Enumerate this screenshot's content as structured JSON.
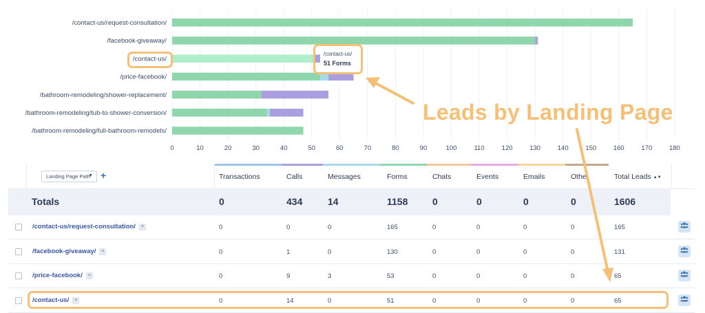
{
  "chart_data": {
    "type": "bar",
    "orientation": "horizontal",
    "stacked": true,
    "categories": [
      "/contact-us/request-consultation/",
      "/facebook-giveaway/",
      "/contact-us/",
      "/price-facebook/",
      "/bathroom-remodeling/shower-replacement/",
      "/bathroom-remodeling/tub-to-shower-conversion/",
      "/bathroom-remodeling/full-bathroom-remodels/"
    ],
    "series": [
      {
        "values": [
          165,
          130,
          51,
          53,
          32,
          34,
          47
        ],
        "color": "#8fd6ad",
        "highlight_color": "#aeeecb"
      },
      {
        "values": [
          0,
          0,
          0,
          3,
          0,
          1,
          0
        ],
        "color": "#a6dcea"
      },
      {
        "values": [
          0,
          1,
          14,
          9,
          24,
          12,
          0
        ],
        "color": "#ab9ee0"
      }
    ],
    "highlighted_category": "/contact-us/",
    "x_ticks": [
      "0",
      "10",
      "20",
      "30",
      "40",
      "50",
      "60",
      "70",
      "80",
      "90",
      "100",
      "110",
      "120",
      "130",
      "140",
      "150",
      "160",
      "170",
      "180"
    ],
    "xlim": [
      0,
      180
    ],
    "grid": "vertical",
    "tooltip": {
      "title": "/contact-us/",
      "value": "51 Forms"
    }
  },
  "annotation": {
    "text": "Leads by Landing Page",
    "color": "#f6bf76"
  },
  "table": {
    "dimension_select": "Landing Page Path",
    "add_icon": "+",
    "columns": [
      {
        "label": "Transactions",
        "color": "#9ec6ea"
      },
      {
        "label": "Calls",
        "color": "#ab9ee0"
      },
      {
        "label": "Messages",
        "color": "#a6dcea"
      },
      {
        "label": "Forms",
        "color": "#8fd6ad"
      },
      {
        "label": "Chats",
        "color": "#f6c79a"
      },
      {
        "label": "Events",
        "color": "#e9a9e6"
      },
      {
        "label": "Emails",
        "color": "#f6d79a"
      },
      {
        "label": "Othe",
        "color": "#c2a88f"
      },
      {
        "label": "Total Leads",
        "color": "#ffffff"
      }
    ],
    "sort_icon": "▲▼",
    "totals": {
      "label": "Totals",
      "values": [
        "0",
        "434",
        "14",
        "1158",
        "0",
        "0",
        "0",
        "0",
        "1606"
      ]
    },
    "rows": [
      {
        "path": "/contact-us/request-consultation/",
        "values": [
          "0",
          "0",
          "0",
          "165",
          "0",
          "0",
          "0",
          "0",
          "165"
        ]
      },
      {
        "path": "/facebook-giveaway/",
        "values": [
          "0",
          "1",
          "0",
          "130",
          "0",
          "0",
          "0",
          "0",
          "131"
        ]
      },
      {
        "path": "/price-facebook/",
        "values": [
          "0",
          "9",
          "3",
          "53",
          "0",
          "0",
          "0",
          "0",
          "65"
        ]
      },
      {
        "path": "/contact-us/",
        "values": [
          "0",
          "14",
          "0",
          "51",
          "0",
          "0",
          "0",
          "0",
          "65"
        ]
      }
    ],
    "remove_icon": "×",
    "row_action_icon": "users-icon"
  }
}
